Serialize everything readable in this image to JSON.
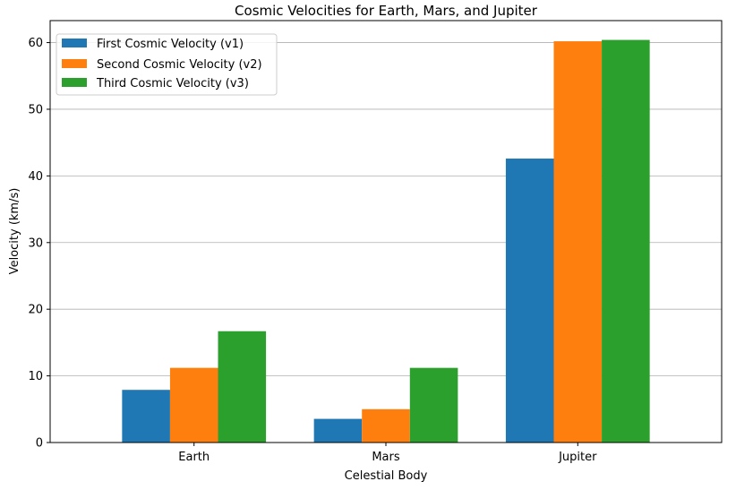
{
  "chart_data": {
    "type": "bar",
    "title": "Cosmic Velocities for Earth, Mars, and Jupiter",
    "xlabel": "Celestial Body",
    "ylabel": "Velocity (km/s)",
    "categories": [
      "Earth",
      "Mars",
      "Jupiter"
    ],
    "series": [
      {
        "name": "First Cosmic Velocity (v1)",
        "color": "#1f77b4",
        "values": [
          7.9,
          3.55,
          42.6
        ]
      },
      {
        "name": "Second Cosmic Velocity (v2)",
        "color": "#ff7f0e",
        "values": [
          11.2,
          5.0,
          60.2
        ]
      },
      {
        "name": "Third Cosmic Velocity (v3)",
        "color": "#2ca02c",
        "values": [
          16.7,
          11.2,
          60.4
        ]
      }
    ],
    "ylim": [
      0,
      63.3
    ],
    "yticks": [
      0,
      10,
      20,
      30,
      40,
      50,
      60
    ],
    "grid": "y-major",
    "legend_position": "top-left"
  }
}
